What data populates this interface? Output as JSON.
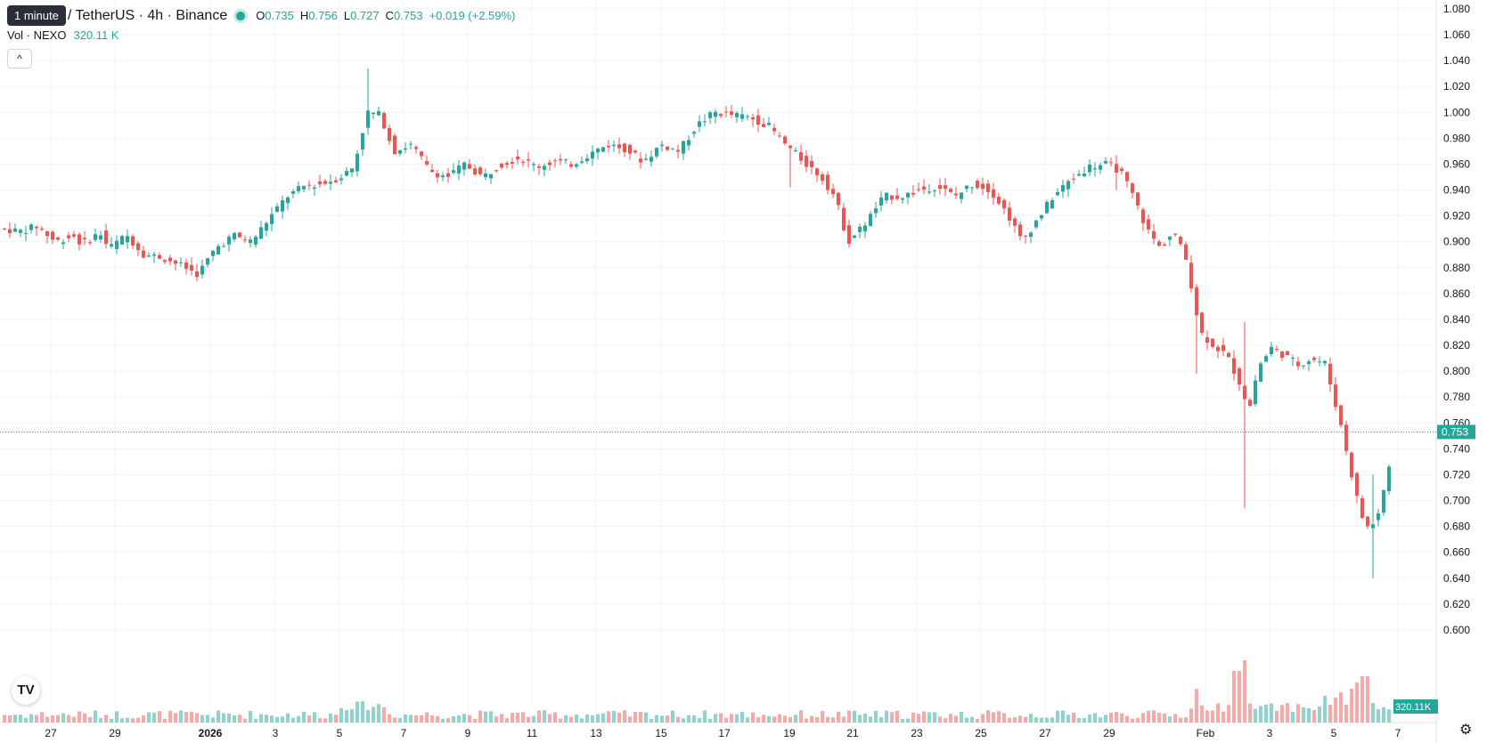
{
  "tooltip": "1 minute",
  "symbol_title": "/ TetherUS · 4h · Binance",
  "ohlc": {
    "o_label": "O",
    "o": "0.735",
    "h_label": "H",
    "h": "0.756",
    "l_label": "L",
    "l": "0.727",
    "c_label": "C",
    "c": "0.753",
    "change": "+0.019 (+2.59%)"
  },
  "volume": {
    "label": "Vol · NEXO",
    "value": "320.11 K",
    "badge": "320.11K"
  },
  "collapse_icon": "chevron-up-icon",
  "colors": {
    "up": "#26a69a",
    "down": "#ef5350",
    "up_vol": "#8fd3cc",
    "down_vol": "#f7a9a7",
    "grid": "#f0f3fa",
    "price_line": "#26a69a"
  },
  "chart_data": {
    "type": "candlestick",
    "interval": "4h",
    "price_axis": {
      "min": 0.58,
      "max": 1.09,
      "ticks": [
        "1.080",
        "1.060",
        "1.040",
        "1.020",
        "1.000",
        "0.980",
        "0.960",
        "0.940",
        "0.920",
        "0.900",
        "0.880",
        "0.860",
        "0.840",
        "0.820",
        "0.800",
        "0.780",
        "0.760",
        "0.740",
        "0.720",
        "0.700",
        "0.680",
        "0.660",
        "0.640",
        "0.620",
        "0.600"
      ]
    },
    "time_axis": {
      "labels": [
        "27",
        "29",
        "2026",
        "3",
        "5",
        "7",
        "9",
        "11",
        "13",
        "15",
        "17",
        "19",
        "21",
        "23",
        "25",
        "27",
        "29",
        "Feb",
        "3",
        "5",
        "7"
      ],
      "bold": [
        "2026"
      ]
    },
    "last_price": "0.753",
    "key_points": [
      {
        "date": "Dec 26",
        "close": 0.91
      },
      {
        "date": "Dec 31",
        "low": 0.868,
        "close": 0.875
      },
      {
        "date": "Jan 5",
        "close": 0.95
      },
      {
        "date": "Jan 6",
        "high": 1.034,
        "close": 1.0
      },
      {
        "date": "Jan 8",
        "close": 0.955
      },
      {
        "date": "Jan 12",
        "close": 0.96
      },
      {
        "date": "Jan 16",
        "high": 1.012,
        "close": 1.005
      },
      {
        "date": "Jan 19",
        "low": 0.94,
        "close": 0.96
      },
      {
        "date": "Jan 20",
        "low": 0.898,
        "close": 0.9
      },
      {
        "date": "Jan 23",
        "close": 0.935
      },
      {
        "date": "Jan 26",
        "low": 0.893,
        "close": 0.9
      },
      {
        "date": "Jan 28",
        "high": 0.965,
        "close": 0.96
      },
      {
        "date": "Jan 30",
        "close": 0.905
      },
      {
        "date": "Feb 1",
        "low": 0.798,
        "close": 0.82
      },
      {
        "date": "Feb 2",
        "low": 0.694,
        "close": 0.76
      },
      {
        "date": "Feb 3",
        "high": 0.83,
        "close": 0.815
      },
      {
        "date": "Feb 4",
        "close": 0.808
      },
      {
        "date": "Feb 5",
        "low": 0.61,
        "close": 0.672
      },
      {
        "date": "Feb 6",
        "high": 0.756,
        "low": 0.64,
        "close": 0.753
      }
    ]
  }
}
